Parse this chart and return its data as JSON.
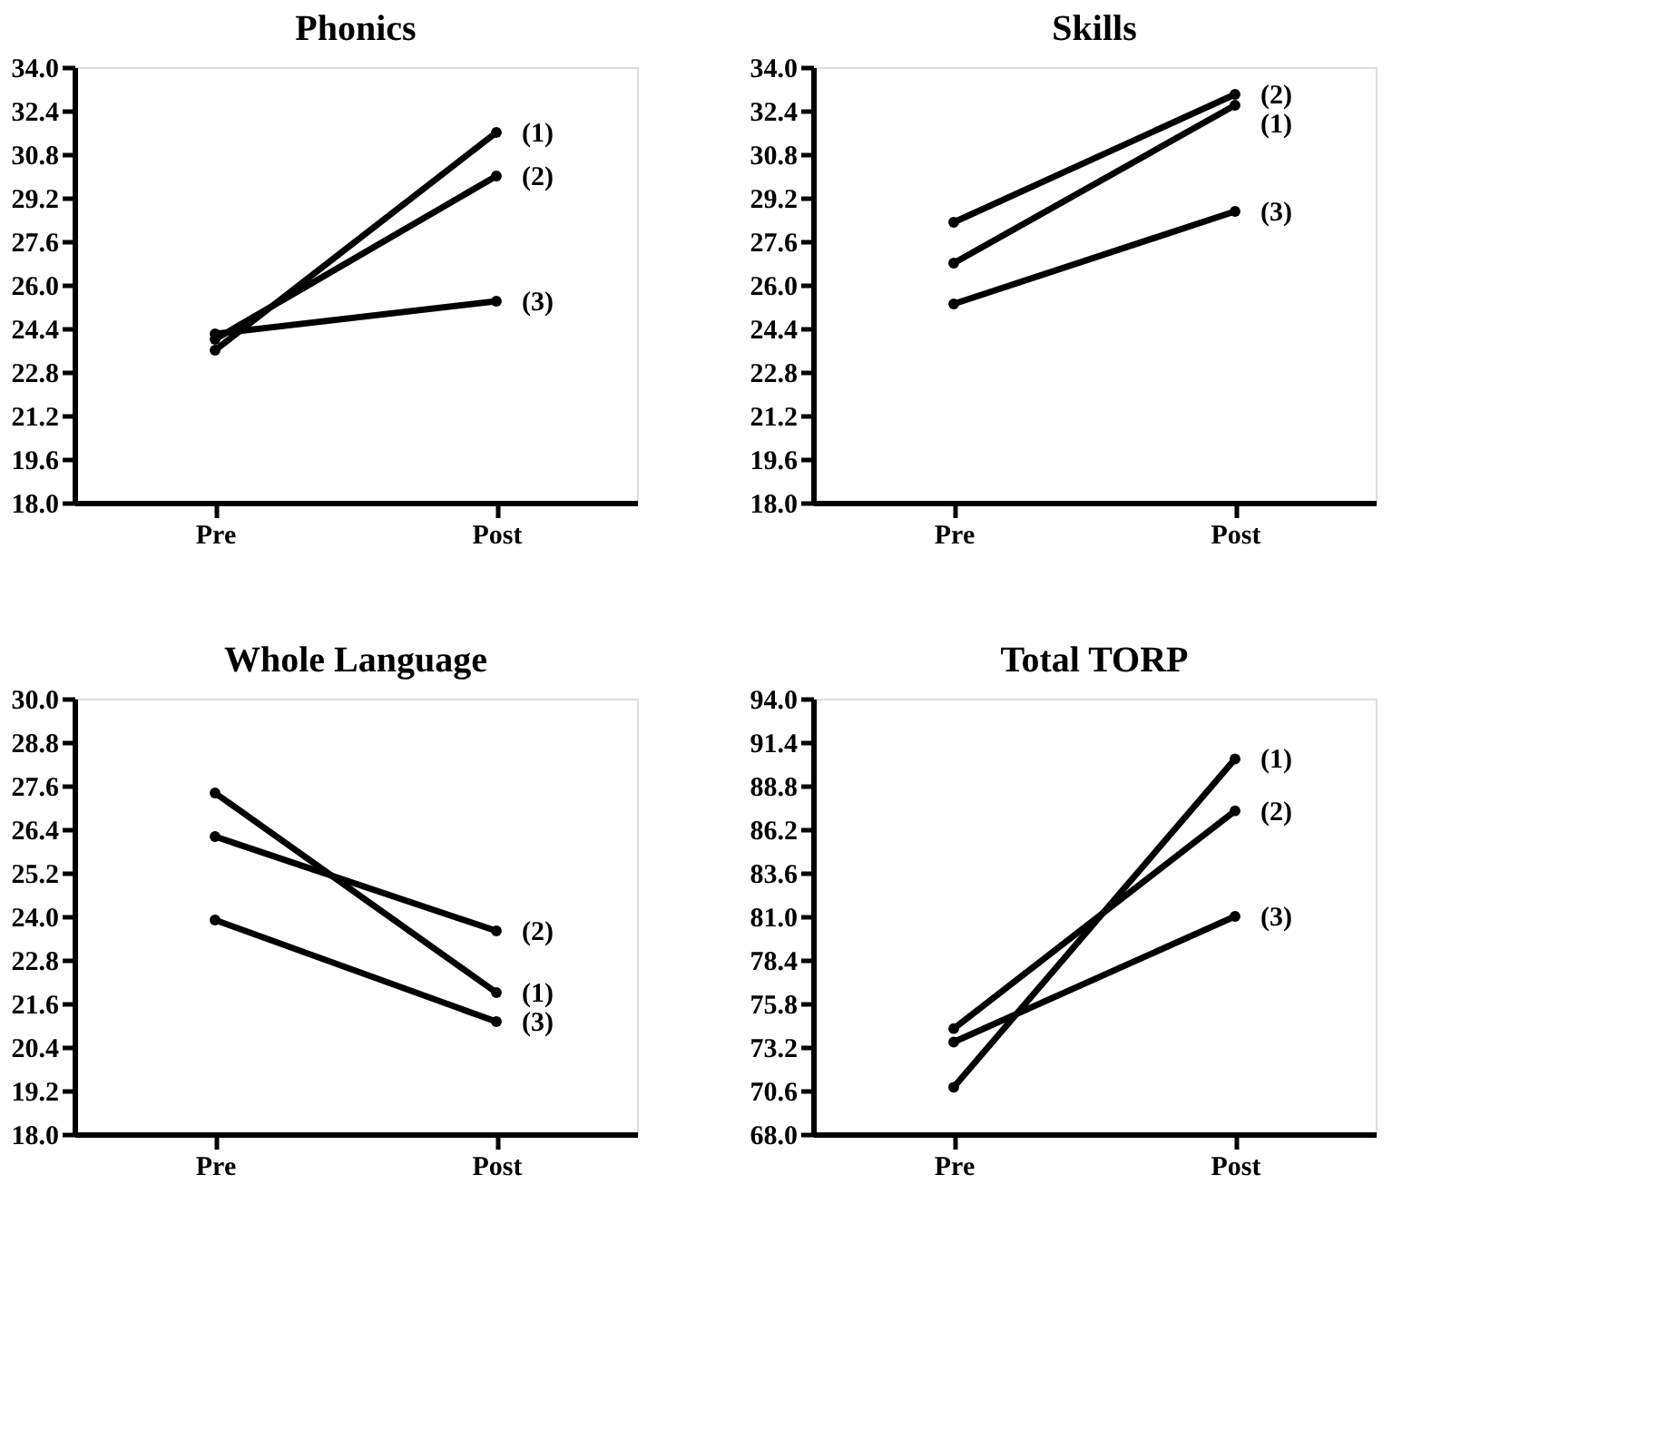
{
  "chart_data": [
    {
      "type": "line",
      "title": "Phonics",
      "categories": [
        "Pre",
        "Post"
      ],
      "marker": "circle",
      "series": [
        {
          "name": "(1)",
          "color": "#000000",
          "values": [
            23.6,
            31.6
          ]
        },
        {
          "name": "(2)",
          "color": "#000000",
          "values": [
            24.0,
            30.0
          ]
        },
        {
          "name": "(3)",
          "color": "#000000",
          "values": [
            24.2,
            25.4
          ]
        }
      ],
      "ylim": [
        18.0,
        34.0
      ],
      "yticks": [
        {
          "value": 18,
          "label": "18.0"
        },
        {
          "value": 19.6,
          "label": "19.6"
        },
        {
          "value": 21.2,
          "label": "21.2"
        },
        {
          "value": 22.8,
          "label": "22.8"
        },
        {
          "value": 24.4,
          "label": "24.4"
        },
        {
          "value": 26,
          "label": "26.0"
        },
        {
          "value": 27.6,
          "label": "27.6"
        },
        {
          "value": 29.2,
          "label": "29.2"
        },
        {
          "value": 30.8,
          "label": "30.8"
        },
        {
          "value": 32.4,
          "label": "32.4"
        },
        {
          "value": 34,
          "label": "34.0"
        }
      ]
    },
    {
      "type": "line",
      "title": "Skills",
      "categories": [
        "Pre",
        "Post"
      ],
      "marker": "circle",
      "series": [
        {
          "name": "(1)",
          "color": "#000000",
          "values": [
            26.8,
            32.6
          ]
        },
        {
          "name": "(2)",
          "color": "#000000",
          "values": [
            28.3,
            33.0
          ]
        },
        {
          "name": "(3)",
          "color": "#000000",
          "values": [
            25.3,
            28.7
          ]
        }
      ],
      "ylim": [
        18.0,
        34.0
      ],
      "yticks": [
        {
          "value": 18,
          "label": "18.0"
        },
        {
          "value": 19.6,
          "label": "19.6"
        },
        {
          "value": 21.2,
          "label": "21.2"
        },
        {
          "value": 22.8,
          "label": "22.8"
        },
        {
          "value": 24.4,
          "label": "24.4"
        },
        {
          "value": 26,
          "label": "26.0"
        },
        {
          "value": 27.6,
          "label": "27.6"
        },
        {
          "value": 29.2,
          "label": "29.2"
        },
        {
          "value": 30.8,
          "label": "30.8"
        },
        {
          "value": 32.4,
          "label": "32.4"
        },
        {
          "value": 34,
          "label": "34.0"
        }
      ]
    },
    {
      "type": "line",
      "title": "Whole Language",
      "categories": [
        "Pre",
        "Post"
      ],
      "marker": "circle",
      "series": [
        {
          "name": "(1)",
          "color": "#000000",
          "values": [
            27.4,
            21.9
          ]
        },
        {
          "name": "(2)",
          "color": "#000000",
          "values": [
            26.2,
            23.6
          ]
        },
        {
          "name": "(3)",
          "color": "#000000",
          "values": [
            23.9,
            21.1
          ]
        }
      ],
      "ylim": [
        18.0,
        30.0
      ],
      "yticks": [
        {
          "value": 18,
          "label": "18.0"
        },
        {
          "value": 19.2,
          "label": "19.2"
        },
        {
          "value": 20.4,
          "label": "20.4"
        },
        {
          "value": 21.6,
          "label": "21.6"
        },
        {
          "value": 22.8,
          "label": "22.8"
        },
        {
          "value": 24,
          "label": "24.0"
        },
        {
          "value": 25.2,
          "label": "25.2"
        },
        {
          "value": 26.4,
          "label": "26.4"
        },
        {
          "value": 27.6,
          "label": "27.6"
        },
        {
          "value": 28.8,
          "label": "28.8"
        },
        {
          "value": 30,
          "label": "30.0"
        }
      ]
    },
    {
      "type": "line",
      "title": "Total TORP",
      "categories": [
        "Pre",
        "Post"
      ],
      "marker": "circle",
      "series": [
        {
          "name": "(1)",
          "color": "#000000",
          "values": [
            70.8,
            90.4
          ]
        },
        {
          "name": "(2)",
          "color": "#000000",
          "values": [
            74.3,
            87.3
          ]
        },
        {
          "name": "(3)",
          "color": "#000000",
          "values": [
            73.5,
            81.0
          ]
        }
      ],
      "ylim": [
        68.0,
        94.0
      ],
      "yticks": [
        {
          "value": 68,
          "label": "68.0"
        },
        {
          "value": 70.6,
          "label": "70.6"
        },
        {
          "value": 73.2,
          "label": "73.2"
        },
        {
          "value": 75.8,
          "label": "75.8"
        },
        {
          "value": 78.4,
          "label": "78.4"
        },
        {
          "value": 81,
          "label": "81.0"
        },
        {
          "value": 83.6,
          "label": "83.6"
        },
        {
          "value": 86.2,
          "label": "86.2"
        },
        {
          "value": 88.8,
          "label": "88.8"
        },
        {
          "value": 91.4,
          "label": "91.4"
        },
        {
          "value": 94,
          "label": "94.0"
        }
      ]
    }
  ]
}
